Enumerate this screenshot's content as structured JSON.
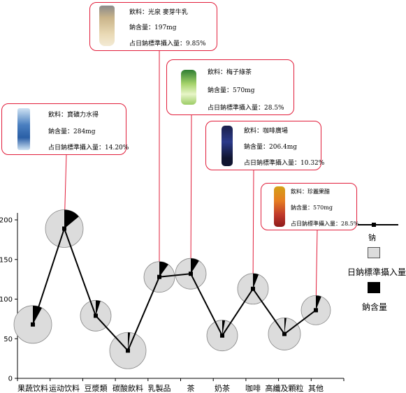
{
  "chart_data": {
    "type": "line",
    "categories": [
      "果蔬饮料",
      "运动饮料",
      "豆漿類",
      "碳酸飲料",
      "乳製品",
      "茶",
      "奶茶",
      "咖啡",
      "高纖及顆粒",
      "其他"
    ],
    "series": [
      {
        "name": "钠",
        "values": [
          68,
          189,
          79,
          35,
          128,
          132,
          54,
          113,
          56,
          86
        ]
      }
    ],
    "bubble_size": [
      27,
      27,
      22,
      26,
      22,
      22,
      22,
      22,
      23,
      21
    ],
    "pie_fraction": [
      0.08,
      0.14,
      0.05,
      0.02,
      0.1,
      0.09,
      0.03,
      0.06,
      0.02,
      0.06
    ],
    "yticks": [
      0,
      50,
      100,
      150,
      200
    ],
    "ylim": [
      0,
      200
    ],
    "legend_position": "right",
    "legend": [
      {
        "label": "钠",
        "kind": "line"
      },
      {
        "label": "日鈉標準攝入量",
        "kind": "gray-square"
      },
      {
        "label": "鈉含量",
        "kind": "black-square"
      }
    ]
  },
  "callouts": [
    {
      "id": "c1",
      "product_icon": "water-bottle-icon",
      "lines": [
        "飲料：寶礦力水得",
        "鈉含量：284mg",
        "占日鈉標準攝入量：14.20%"
      ]
    },
    {
      "id": "c2",
      "product_icon": "milk-tea-cup-icon",
      "lines": [
        "飲料：光泉 麥芽牛乳",
        "鈉含量：197mg",
        "占日鈉標準攝入量：9.85%"
      ]
    },
    {
      "id": "c3",
      "product_icon": "green-tea-bottle-icon",
      "lines": [
        "飲料：梅子綠茶",
        "鈉含量：570mg",
        "占日鈉標準攝入量：28.5%"
      ]
    },
    {
      "id": "c4",
      "product_icon": "coffee-bottle-icon",
      "lines": [
        "飲料：咖啡廣場",
        "鈉含量：206.4mg",
        "占日鈉標準攝入量：10.32%"
      ]
    },
    {
      "id": "c5",
      "product_icon": "vinegar-bottle-icon",
      "lines": [
        "飲料：珍麗果醋",
        "鈉含量：570mg",
        "占日鈉標準攝入量：28.5%"
      ]
    }
  ],
  "colors": {
    "line": "#000000",
    "bubble": "#dcdcdc",
    "wedge": "#000000",
    "callout_border": "#e11d3a",
    "connector": "#e11d3a"
  }
}
